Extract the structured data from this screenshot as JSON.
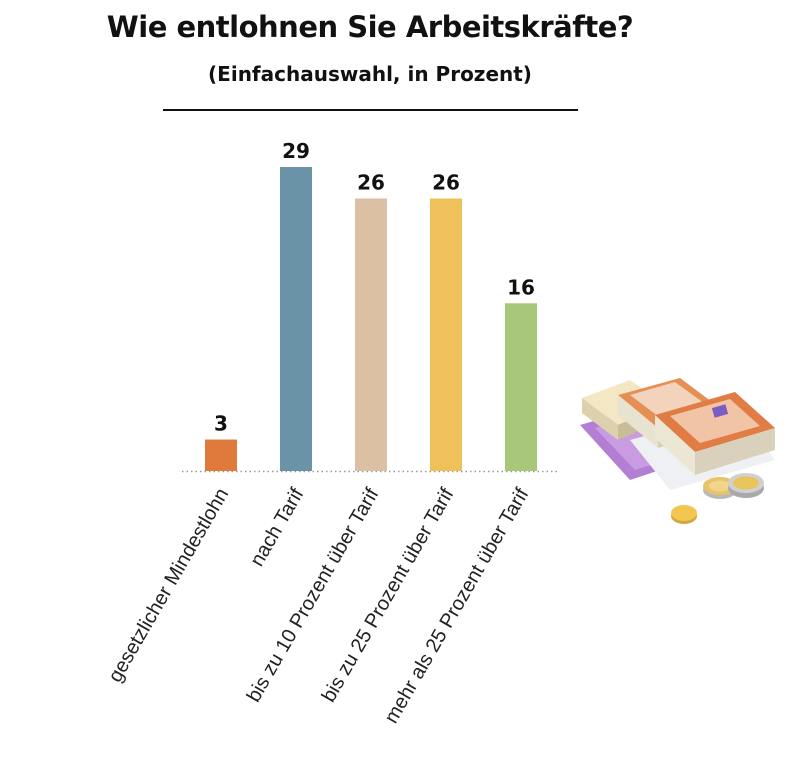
{
  "chart_data": {
    "type": "bar",
    "title": "Wie entlohnen Sie Arbeitskräfte?",
    "subtitle": "(Einfachauswahl, in Prozent)",
    "categories": [
      "gesetzlicher Mindestlohn",
      "nach Tarif",
      "bis zu 10 Prozent über Tarif",
      "bis zu 25 Prozent über Tarif",
      "mehr als 25 Prozent über Tarif"
    ],
    "values": [
      3,
      29,
      26,
      26,
      16
    ],
    "colors": [
      "#e07a3c",
      "#6b93a8",
      "#dcc0a4",
      "#efc15a",
      "#a8c77b"
    ],
    "ylim": [
      0,
      29
    ],
    "grid": false,
    "baseline": "dotted"
  },
  "illustration": {
    "icon": "euro-money-stack-icon"
  }
}
